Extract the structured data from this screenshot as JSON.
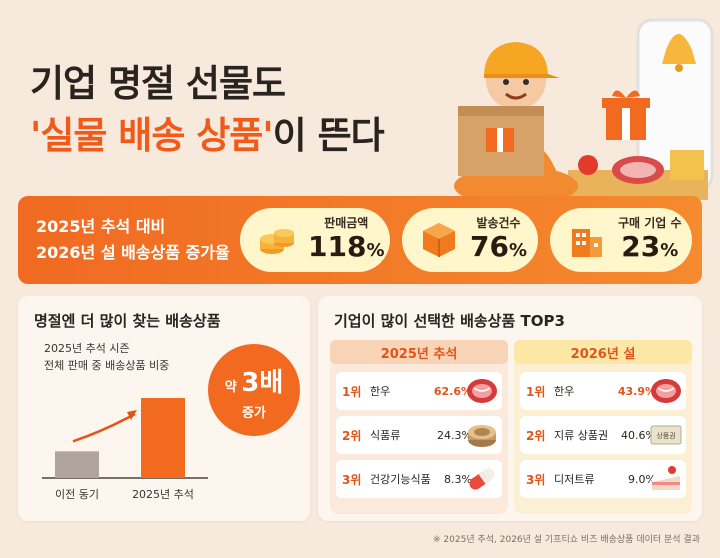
{
  "headline": {
    "line1": "기업 명절 선물도",
    "accent": "'실물 배송 상품'",
    "line2_rest": "이 뜬다"
  },
  "banner": {
    "label_line1": "2025년 추석 대비",
    "label_line2": "2026년 설 배송상품 증가율",
    "stats": [
      {
        "name": "판매금액",
        "value": "118",
        "unit": "%",
        "icon": "coins-icon"
      },
      {
        "name": "발송건수",
        "value": "76",
        "unit": "%",
        "icon": "box-icon"
      },
      {
        "name": "구매 기업 수",
        "value": "23",
        "unit": "%",
        "icon": "building-icon"
      }
    ]
  },
  "left_card": {
    "title": "명절엔 더 많이 찾는 배송상품",
    "sub_line1": "2025년 추석 시즌",
    "sub_line2": "전체 판매 중 배송상품 비중",
    "badge_prefix": "약 ",
    "badge_value": "3배",
    "badge_suffix": "증가"
  },
  "right_card": {
    "title": "기업이 많이 선택한 배송상품 TOP3",
    "columns": [
      {
        "header": "2025년 추석",
        "rows": [
          {
            "rank": "1위",
            "name": "한우",
            "value": "62.6%",
            "icon": "beef-icon"
          },
          {
            "rank": "2위",
            "name": "식품류",
            "value": "24.3%",
            "icon": "can-icon"
          },
          {
            "rank": "3위",
            "name": "건강기능식품",
            "value": "8.3%",
            "icon": "capsule-icon"
          }
        ]
      },
      {
        "header": "2026년 설",
        "rows": [
          {
            "rank": "1위",
            "name": "한우",
            "value": "43.9%",
            "icon": "beef-icon"
          },
          {
            "rank": "2위",
            "name": "지류 상품권",
            "value": "40.6%",
            "icon": "voucher-icon",
            "icon_text": "상품권"
          },
          {
            "rank": "3위",
            "name": "디저트류",
            "value": "9.0%",
            "icon": "cake-icon"
          }
        ]
      }
    ]
  },
  "footnote": "※ 2025년 추석, 2026년 설 기프티쇼 비즈 배송상품 데이터 분석 결과",
  "colors": {
    "accent": "#f05a1a",
    "bar_prev": "#b0a59e",
    "bar_now": "#f26a1f"
  },
  "chart_data": {
    "type": "bar",
    "categories": [
      "이전 동기",
      "2025년 추석"
    ],
    "values": [
      1,
      3
    ],
    "title": "",
    "xlabel": "",
    "ylabel": "",
    "ylim": [
      0,
      3.3
    ]
  }
}
